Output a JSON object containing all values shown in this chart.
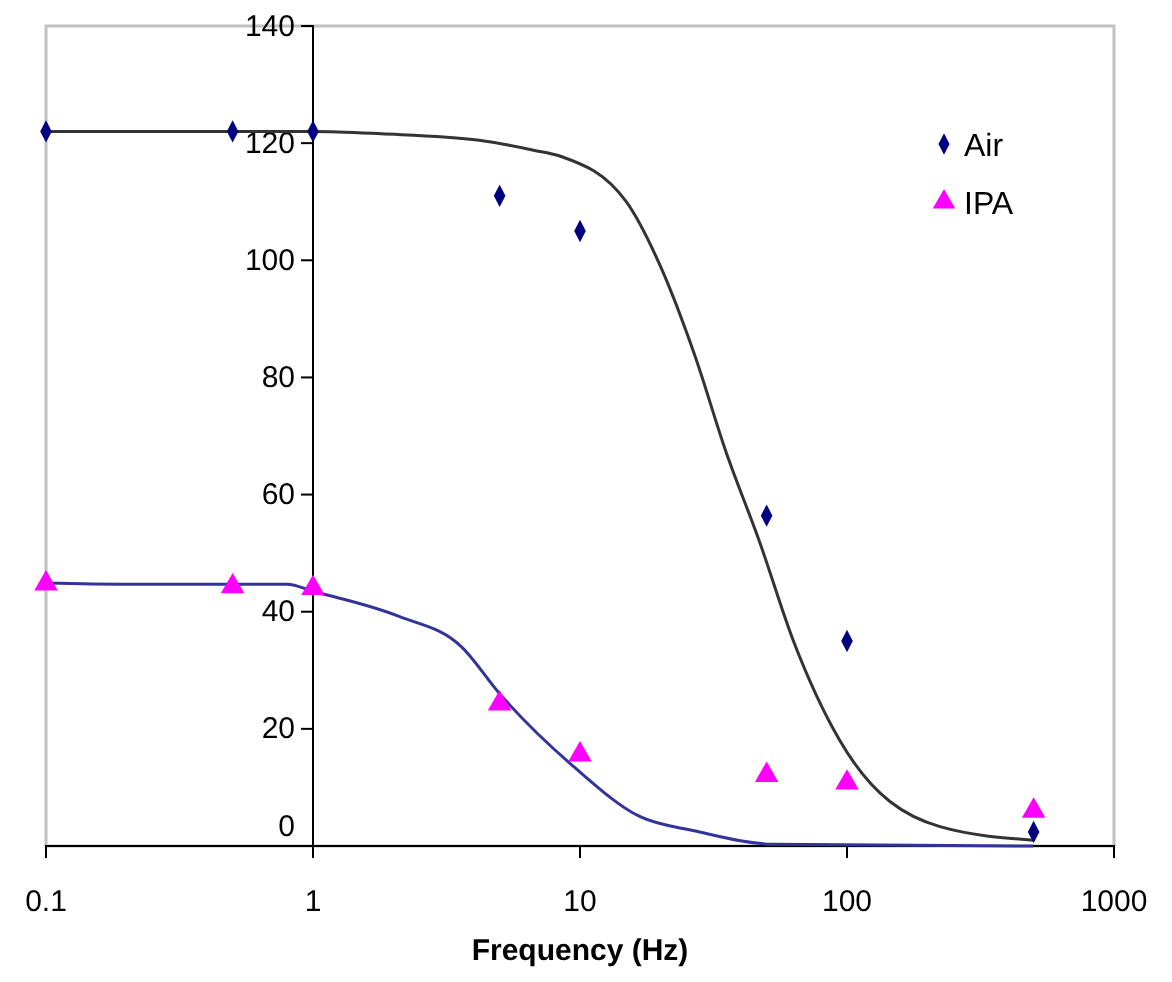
{
  "chart_data": {
    "type": "scatter",
    "xlabel": "Frequency (Hz)",
    "log": "x",
    "xlim": [
      0.1,
      1000
    ],
    "xticks": [
      0.1,
      1,
      10,
      100,
      1000
    ],
    "ylim": [
      0,
      140
    ],
    "yticks": [
      0,
      20,
      40,
      60,
      80,
      100,
      120,
      140
    ],
    "grid": false,
    "legend": "top right",
    "series": [
      {
        "type": "line",
        "color": "#333333",
        "marker": "none",
        "x": [
          0.1,
          1,
          1.8,
          4.2,
          6.7,
          8.4,
          14.9,
          20,
          26.8,
          35.4,
          47,
          63,
          94,
          223,
          500
        ],
        "values": [
          122,
          122,
          121.6,
          120.5,
          118.8,
          117.8,
          110,
          99,
          84,
          67,
          52,
          35,
          18,
          3.3,
          1
        ]
      },
      {
        "type": "line",
        "color": "#333399",
        "marker": "none",
        "x": [
          0.1,
          0.2,
          0.8,
          1,
          2.1,
          3.6,
          5,
          9.5,
          16.8,
          26.8,
          53,
          500
        ],
        "values": [
          44.9,
          44.7,
          44.7,
          43.5,
          39.2,
          34,
          26,
          13.5,
          5,
          2.6,
          0.3,
          0
        ]
      },
      {
        "name": "Air",
        "color": "#000080",
        "marker": "diamond",
        "x": [
          0.1,
          0.5,
          1,
          5,
          10,
          50,
          100,
          500
        ],
        "values": [
          122,
          122,
          122,
          111,
          105,
          56.4,
          35,
          2.4
        ]
      },
      {
        "name": "IPA",
        "color": "#ff00ff",
        "marker": "triangle",
        "x": [
          0.1,
          0.5,
          1,
          5,
          10,
          50,
          100,
          500
        ],
        "values": [
          44.8,
          44.3,
          44,
          24.3,
          15.6,
          12.1,
          10.8,
          6
        ]
      }
    ]
  }
}
